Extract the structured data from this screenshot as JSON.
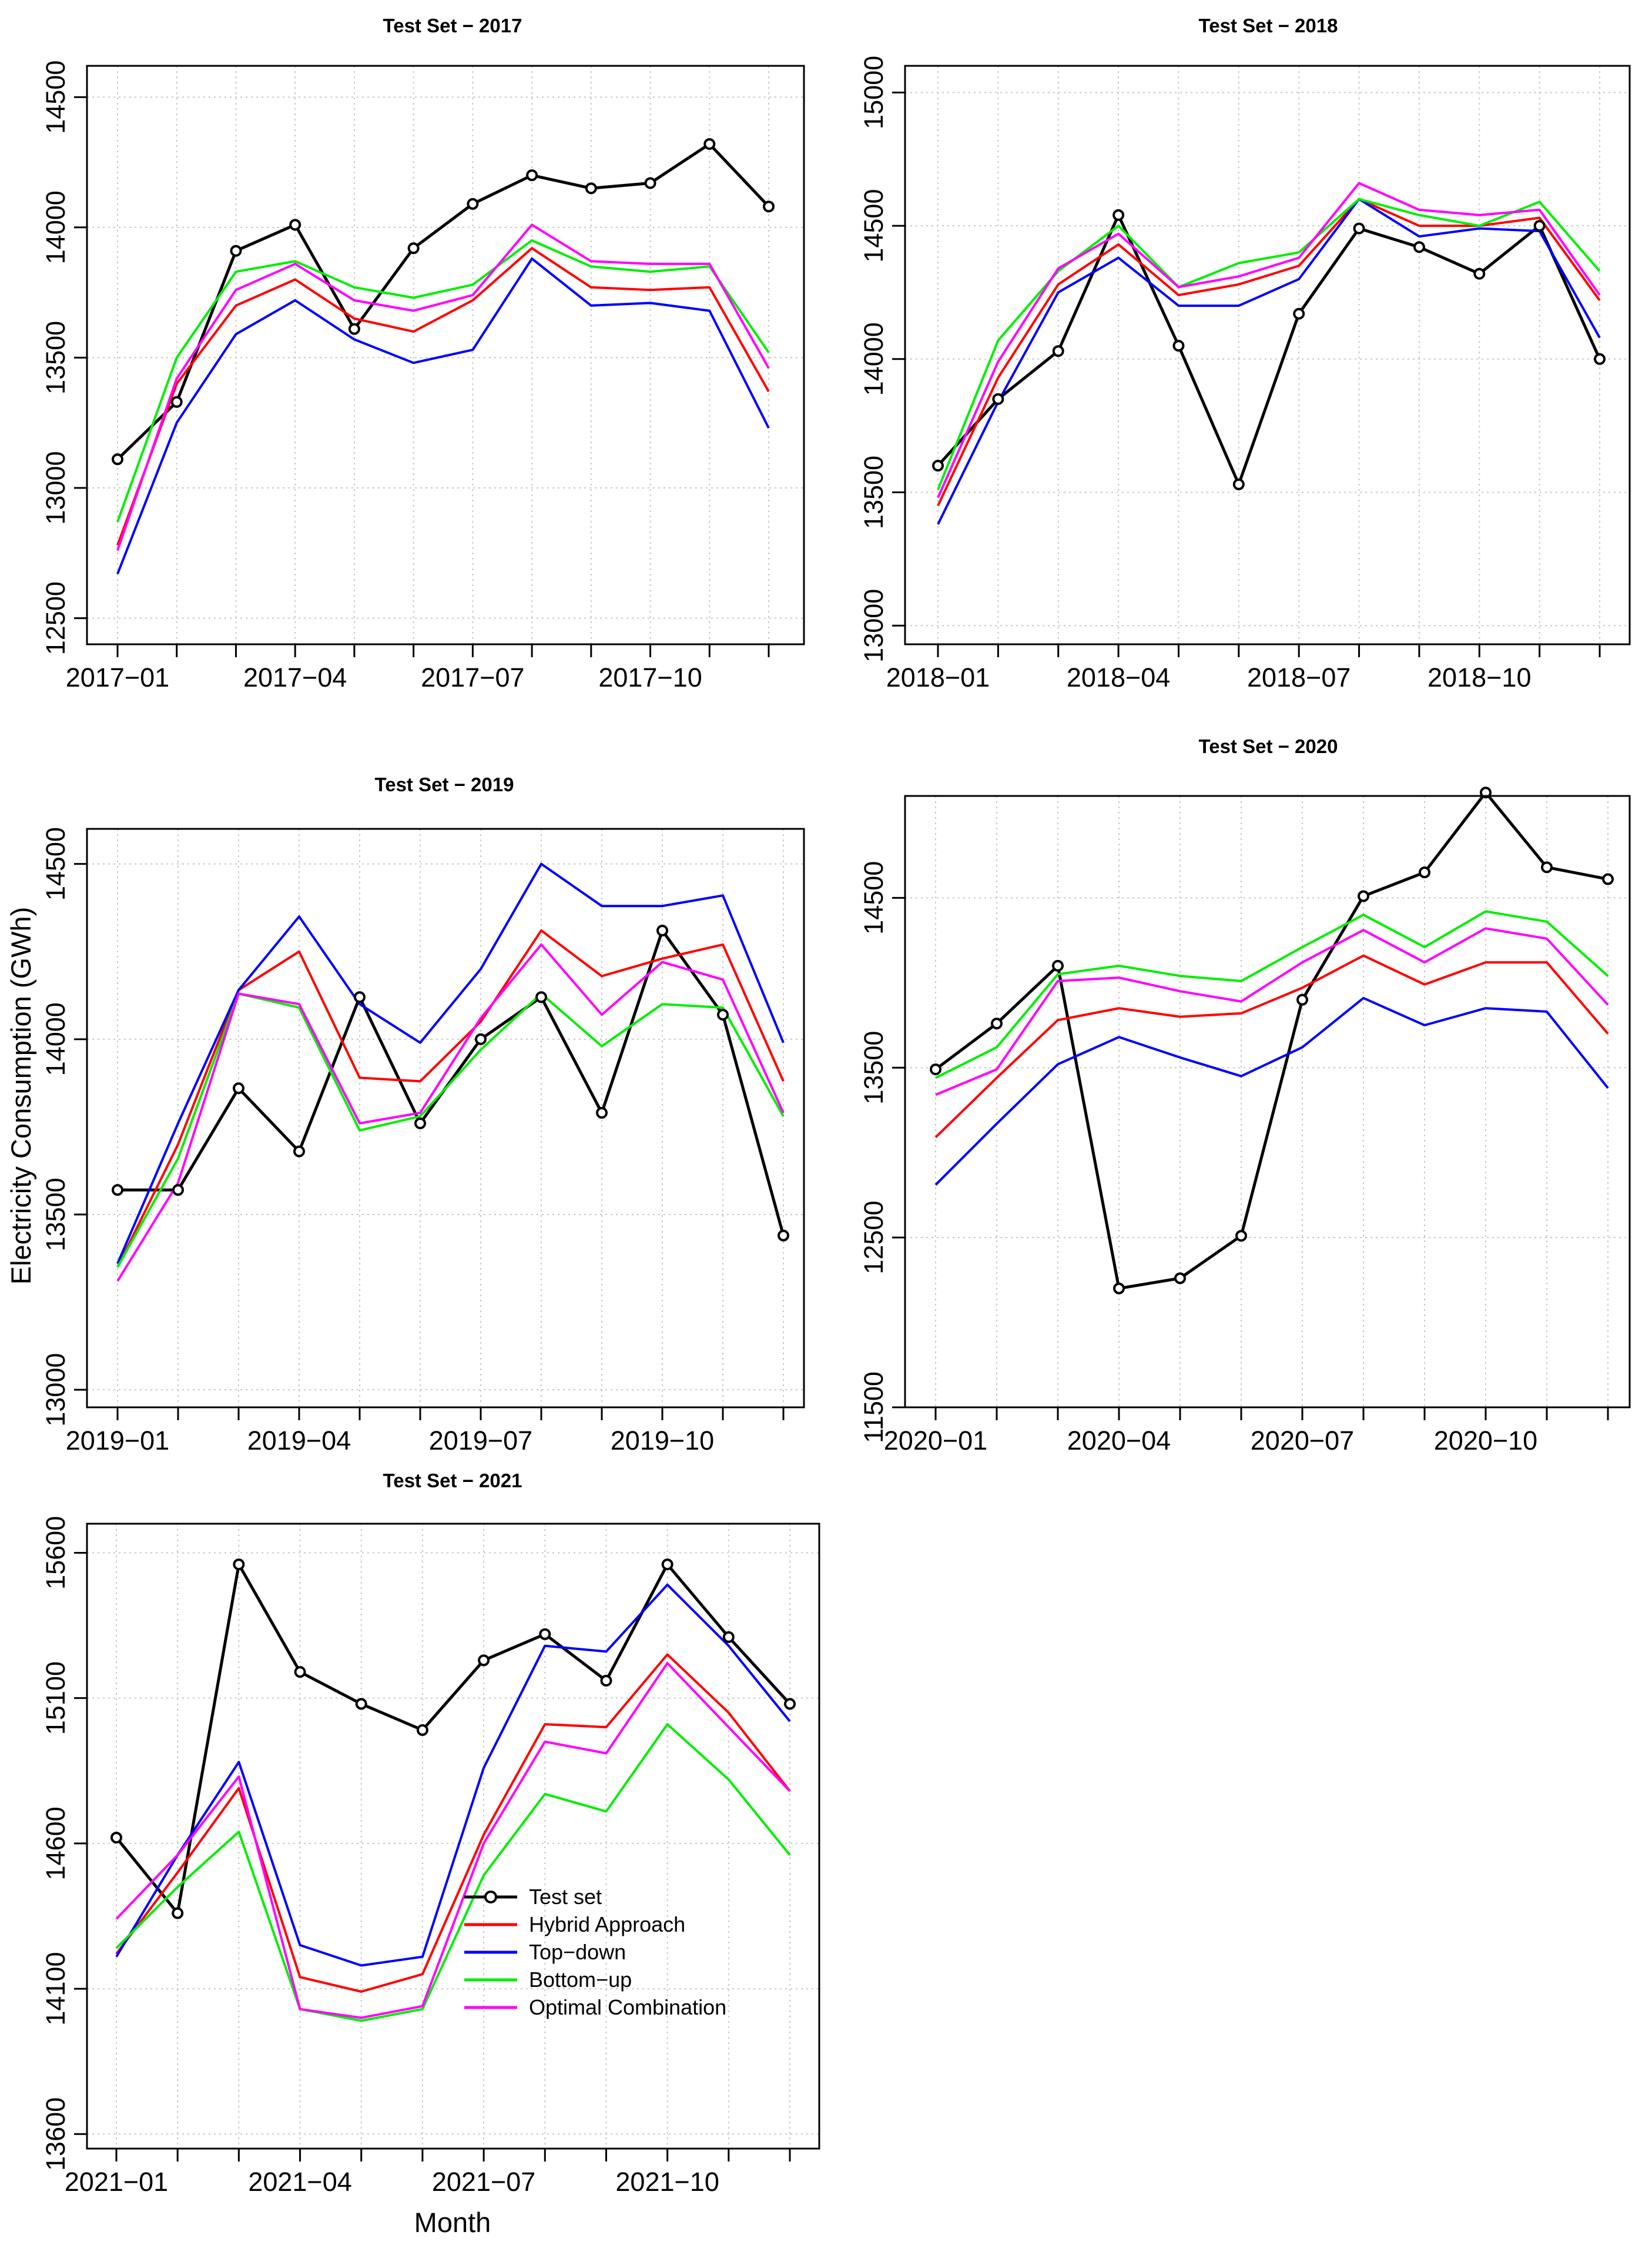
{
  "figure": {
    "ylabel": "Electricity Consumption (GWh)",
    "xlabel": "Month"
  },
  "chart_data": [
    {
      "type": "line",
      "title": "Test Set − 2017",
      "x": [
        "2017-01",
        "2017-02",
        "2017-03",
        "2017-04",
        "2017-05",
        "2017-06",
        "2017-07",
        "2017-08",
        "2017-09",
        "2017-10",
        "2017-11",
        "2017-12"
      ],
      "xtick_labels": [
        "2017−01",
        "2017−04",
        "2017−07",
        "2017−10"
      ],
      "ylim": [
        12400,
        14620
      ],
      "yticks": [
        12500,
        13000,
        13500,
        14000,
        14500
      ],
      "grid": true,
      "series": [
        {
          "name": "Test set",
          "color": "#000000",
          "markers": true,
          "values": [
            13110,
            13330,
            13910,
            14010,
            13610,
            13920,
            14090,
            14200,
            14150,
            14170,
            14320,
            14080
          ]
        },
        {
          "name": "Hybrid Approach",
          "color": "#ff0000",
          "values": [
            12780,
            13400,
            13700,
            13800,
            13650,
            13600,
            13720,
            13920,
            13770,
            13760,
            13770,
            13370
          ]
        },
        {
          "name": "Top-down",
          "color": "#0000ff",
          "values": [
            12670,
            13250,
            13590,
            13720,
            13570,
            13480,
            13530,
            13880,
            13700,
            13710,
            13680,
            13230
          ]
        },
        {
          "name": "Bottom-up",
          "color": "#00ee00",
          "values": [
            12870,
            13500,
            13830,
            13870,
            13770,
            13730,
            13780,
            13950,
            13850,
            13830,
            13850,
            13520
          ]
        },
        {
          "name": "Optimal Combination",
          "color": "#ff00ff",
          "values": [
            12760,
            13420,
            13760,
            13860,
            13720,
            13680,
            13740,
            14010,
            13870,
            13860,
            13860,
            13460
          ]
        }
      ]
    },
    {
      "type": "line",
      "title": "Test Set − 2018",
      "x": [
        "2018-01",
        "2018-02",
        "2018-03",
        "2018-04",
        "2018-05",
        "2018-06",
        "2018-07",
        "2018-08",
        "2018-09",
        "2018-10",
        "2018-11",
        "2018-12"
      ],
      "xtick_labels": [
        "2018−01",
        "2018−04",
        "2018−07",
        "2018−10"
      ],
      "ylim": [
        12930,
        15100
      ],
      "yticks": [
        13000,
        13500,
        14000,
        14500,
        15000
      ],
      "grid": true,
      "series": [
        {
          "name": "Test set",
          "color": "#000000",
          "markers": true,
          "values": [
            13600,
            13850,
            14030,
            14540,
            14050,
            13530,
            14170,
            14490,
            14420,
            14320,
            14500,
            14000
          ]
        },
        {
          "name": "Hybrid Approach",
          "color": "#ff0000",
          "values": [
            13450,
            13930,
            14280,
            14430,
            14240,
            14280,
            14350,
            14600,
            14500,
            14500,
            14530,
            14220
          ]
        },
        {
          "name": "Top-down",
          "color": "#0000ff",
          "values": [
            13380,
            13840,
            14250,
            14380,
            14200,
            14200,
            14300,
            14600,
            14460,
            14490,
            14480,
            14080
          ]
        },
        {
          "name": "Bottom-up",
          "color": "#00ee00",
          "values": [
            13510,
            14070,
            14330,
            14500,
            14270,
            14360,
            14400,
            14600,
            14540,
            14500,
            14590,
            14330
          ]
        },
        {
          "name": "Optimal Combination",
          "color": "#ff00ff",
          "values": [
            13480,
            13990,
            14340,
            14470,
            14270,
            14310,
            14380,
            14660,
            14560,
            14540,
            14560,
            14240
          ]
        }
      ]
    },
    {
      "type": "line",
      "title": "Test Set − 2019",
      "x": [
        "2019-01",
        "2019-02",
        "2019-03",
        "2019-04",
        "2019-05",
        "2019-06",
        "2019-07",
        "2019-08",
        "2019-09",
        "2019-10",
        "2019-11",
        "2019-12"
      ],
      "xtick_labels": [
        "2019−01",
        "2019−04",
        "2019−07",
        "2019−10"
      ],
      "ylim": [
        12950,
        14600
      ],
      "yticks": [
        13000,
        13500,
        14000,
        14500
      ],
      "grid": true,
      "series": [
        {
          "name": "Test set",
          "color": "#000000",
          "markers": true,
          "values": [
            13570,
            13570,
            13860,
            13680,
            14120,
            13760,
            14000,
            14120,
            13790,
            14310,
            14070,
            13440
          ]
        },
        {
          "name": "Hybrid Approach",
          "color": "#ff0000",
          "values": [
            13350,
            13700,
            14140,
            14250,
            13890,
            13880,
            14050,
            14310,
            14180,
            14230,
            14270,
            13880
          ]
        },
        {
          "name": "Top-down",
          "color": "#0000ff",
          "values": [
            13360,
            13760,
            14140,
            14350,
            14100,
            13990,
            14200,
            14500,
            14380,
            14380,
            14410,
            13990
          ]
        },
        {
          "name": "Bottom-up",
          "color": "#00ee00",
          "values": [
            13350,
            13660,
            14130,
            14090,
            13740,
            13780,
            13970,
            14130,
            13980,
            14100,
            14090,
            13780
          ]
        },
        {
          "name": "Optimal Combination",
          "color": "#ff00ff",
          "values": [
            13310,
            13590,
            14130,
            14100,
            13760,
            13790,
            14060,
            14270,
            14070,
            14220,
            14170,
            13790
          ]
        }
      ]
    },
    {
      "type": "line",
      "title": "Test Set − 2020",
      "x": [
        "2020-01",
        "2020-02",
        "2020-03",
        "2020-04",
        "2020-05",
        "2020-06",
        "2020-07",
        "2020-08",
        "2020-09",
        "2020-10",
        "2020-11",
        "2020-12"
      ],
      "xtick_labels": [
        "2020−01",
        "2020−04",
        "2020−07",
        "2020−10"
      ],
      "ylim": [
        11500,
        15100
      ],
      "yticks": [
        11500,
        12500,
        13500,
        14500
      ],
      "grid": true,
      "series": [
        {
          "name": "Test set",
          "color": "#000000",
          "markers": true,
          "values": [
            13490,
            13760,
            14100,
            12200,
            12260,
            12510,
            13900,
            14510,
            14650,
            15120,
            14680,
            14610
          ]
        },
        {
          "name": "Hybrid Approach",
          "color": "#ff0000",
          "values": [
            13090,
            13440,
            13780,
            13850,
            13800,
            13820,
            13970,
            14160,
            13990,
            14120,
            14120,
            13700
          ]
        },
        {
          "name": "Top-down",
          "color": "#0000ff",
          "values": [
            12810,
            13170,
            13520,
            13680,
            13560,
            13450,
            13620,
            13910,
            13750,
            13850,
            13830,
            13380
          ]
        },
        {
          "name": "Bottom-up",
          "color": "#00ee00",
          "values": [
            13440,
            13620,
            14050,
            14100,
            14040,
            14010,
            14210,
            14400,
            14210,
            14420,
            14360,
            14040
          ]
        },
        {
          "name": "Optimal Combination",
          "color": "#ff00ff",
          "values": [
            13340,
            13490,
            14010,
            14030,
            13950,
            13890,
            14120,
            14310,
            14120,
            14320,
            14260,
            13870
          ]
        }
      ]
    },
    {
      "type": "line",
      "title": "Test Set − 2021",
      "x": [
        "2021-01",
        "2021-02",
        "2021-03",
        "2021-04",
        "2021-05",
        "2021-06",
        "2021-07",
        "2021-08",
        "2021-09",
        "2021-10",
        "2021-11",
        "2021-12"
      ],
      "xtick_labels": [
        "2021−01",
        "2021−04",
        "2021−07",
        "2021−10"
      ],
      "ylim": [
        13550,
        15700
      ],
      "yticks": [
        13600,
        14100,
        14600,
        15100,
        15600
      ],
      "grid": true,
      "legend": "center-right",
      "series": [
        {
          "name": "Test set",
          "color": "#000000",
          "markers": true,
          "values": [
            14620,
            14360,
            15560,
            15190,
            15080,
            14990,
            15230,
            15320,
            15160,
            15560,
            15310,
            15080
          ]
        },
        {
          "name": "Hybrid Approach",
          "color": "#ff0000",
          "values": [
            14220,
            14500,
            14790,
            14140,
            14090,
            14150,
            14630,
            15010,
            15000,
            15250,
            15050,
            14780
          ]
        },
        {
          "name": "Top-down",
          "color": "#0000ff",
          "values": [
            14210,
            14560,
            14880,
            14250,
            14180,
            14210,
            14860,
            15280,
            15260,
            15490,
            15280,
            15020
          ]
        },
        {
          "name": "Bottom-up",
          "color": "#00ee00",
          "values": [
            14240,
            14450,
            14640,
            14030,
            13990,
            14030,
            14490,
            14770,
            14710,
            15010,
            14820,
            14560
          ]
        },
        {
          "name": "Optimal Combination",
          "color": "#ff00ff",
          "values": [
            14340,
            14560,
            14830,
            14030,
            14000,
            14040,
            14600,
            14950,
            14910,
            15220,
            15000,
            14780
          ]
        }
      ]
    }
  ]
}
